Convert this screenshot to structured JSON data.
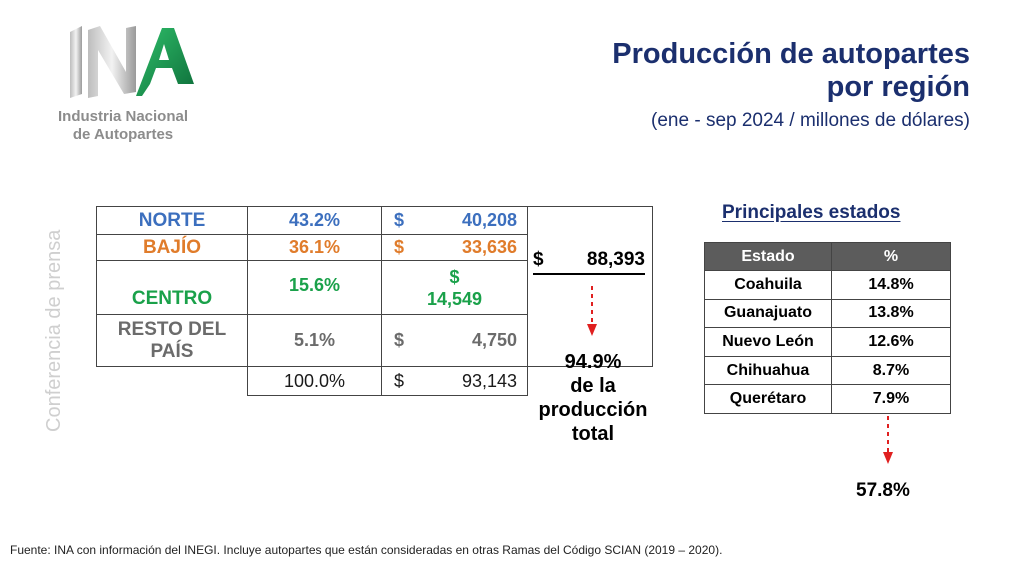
{
  "logo": {
    "name_line1": "Industria Nacional",
    "name_line2": "de Autopartes"
  },
  "header": {
    "title_line1": "Producción de autopartes",
    "title_line2": "por región",
    "subtitle": "(ene - sep 2024 / millones de dólares)"
  },
  "side_label": "Conferencia de prensa",
  "regions": {
    "rows": [
      {
        "name": "NORTE",
        "pct": "43.2%",
        "currency": "$",
        "value": "40,208"
      },
      {
        "name": "BAJÍO",
        "pct": "36.1%",
        "currency": "$",
        "value": "33,636"
      },
      {
        "name": "CENTRO",
        "pct": "15.6%",
        "currency": "$",
        "value": "14,549"
      },
      {
        "name_line1": "RESTO DEL",
        "name_line2": "PAÍS",
        "pct": "5.1%",
        "currency": "$",
        "value": "4,750"
      }
    ],
    "total": {
      "pct": "100.0%",
      "currency": "$",
      "value": "93,143"
    },
    "subtotal": {
      "currency": "$",
      "value": "88,393"
    },
    "share_line1": "94.9%",
    "share_line2": "de la",
    "share_line3": "producción",
    "share_line4": "total"
  },
  "states": {
    "title": "Principales estados",
    "headers": [
      "Estado",
      "%"
    ],
    "rows": [
      {
        "name": "Coahuila",
        "pct": "14.8%"
      },
      {
        "name": "Guanajuato",
        "pct": "13.8%"
      },
      {
        "name": "Nuevo León",
        "pct": "12.6%"
      },
      {
        "name": "Chihuahua",
        "pct": "8.7%"
      },
      {
        "name": "Querétaro",
        "pct": "7.9%"
      }
    ],
    "total": "57.8%"
  },
  "footer": "Fuente: INA con información del INEGI. Incluye autopartes que están consideradas en otras Ramas del Código SCIAN (2019 – 2020).",
  "colors": {
    "title": "#1b2f6e",
    "norte": "#3c6fbe",
    "bajio": "#e07c2b",
    "centro": "#1aa14a",
    "resto": "#6b6b6b",
    "arrow": "#e02020",
    "logo_green": "#1a8a4a"
  }
}
